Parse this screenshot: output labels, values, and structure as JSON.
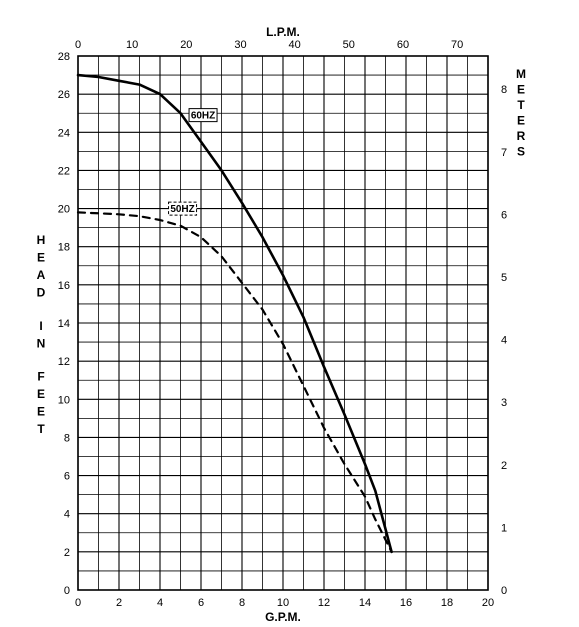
{
  "chart_data": {
    "type": "line",
    "title": "",
    "x_bottom": {
      "label": "G.P.M.",
      "range": [
        0,
        20
      ],
      "ticks": [
        "0",
        "2",
        "4",
        "6",
        "8",
        "10",
        "12",
        "14",
        "16",
        "18",
        "20"
      ]
    },
    "x_top": {
      "label": "L.P.M.",
      "range": [
        0,
        75.7
      ],
      "ticks": [
        "0",
        "10",
        "20",
        "30",
        "40",
        "50",
        "60",
        "70"
      ]
    },
    "y_left": {
      "label": "HEAD IN FEET",
      "range": [
        0,
        28
      ],
      "ticks": [
        "0",
        "2",
        "4",
        "6",
        "8",
        "10",
        "12",
        "14",
        "16",
        "18",
        "20",
        "22",
        "24",
        "26",
        "28"
      ]
    },
    "y_right": {
      "label": "METERS",
      "range": [
        0,
        8.53
      ],
      "ticks": [
        "0",
        "1",
        "2",
        "3",
        "4",
        "5",
        "6",
        "7",
        "8"
      ]
    },
    "grid": true,
    "series": [
      {
        "name": "60HZ",
        "style": "solid",
        "x": [
          0,
          1,
          2,
          3,
          4,
          5,
          6,
          7,
          8,
          9,
          10,
          11,
          12,
          13,
          14,
          14.5,
          15.3
        ],
        "y": [
          27,
          26.9,
          26.7,
          26.5,
          26,
          25,
          23.5,
          22,
          20.3,
          18.5,
          16.5,
          14.3,
          11.7,
          9.2,
          6.6,
          5.2,
          2
        ]
      },
      {
        "name": "50HZ",
        "style": "dashed",
        "x": [
          0,
          1,
          2,
          3,
          4,
          5,
          6,
          7,
          8,
          9,
          10,
          11,
          12,
          13,
          14,
          14.5,
          15.3
        ],
        "y": [
          19.8,
          19.75,
          19.7,
          19.6,
          19.4,
          19.1,
          18.5,
          17.5,
          16.1,
          14.7,
          12.9,
          10.7,
          8.5,
          6.6,
          4.9,
          3.7,
          2
        ]
      }
    ]
  }
}
